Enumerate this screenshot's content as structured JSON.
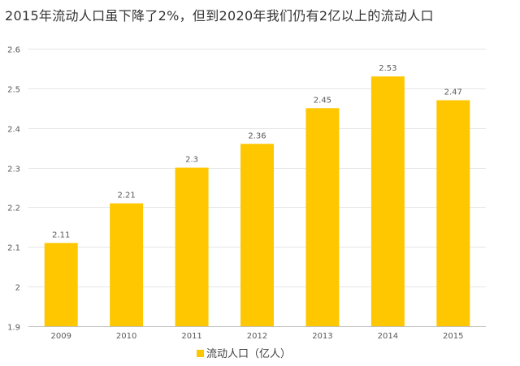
{
  "chart_data": {
    "type": "bar",
    "title": "2015年流动人口虽下降了2%，但到2020年我们仍有2亿以上的流动人口",
    "xlabel": "",
    "ylabel": "",
    "categories": [
      "2009",
      "2010",
      "2011",
      "2012",
      "2013",
      "2014",
      "2015"
    ],
    "series": [
      {
        "name": "流动人口（亿人）",
        "values": [
          2.11,
          2.21,
          2.3,
          2.36,
          2.45,
          2.53,
          2.47
        ],
        "data_labels": [
          "2.11",
          "2.21",
          "2.3",
          "2.36",
          "2.45",
          "2.53",
          "2.47"
        ],
        "color": "#FFC700"
      }
    ],
    "ylim": [
      1.9,
      2.6
    ],
    "yticks": [
      1.9,
      2,
      2.1,
      2.2,
      2.3,
      2.4,
      2.5,
      2.6
    ],
    "ytick_labels": [
      "1.9",
      "2",
      "2.1",
      "2.2",
      "2.3",
      "2.4",
      "2.5",
      "2.6"
    ],
    "grid": true,
    "legend_position": "bottom",
    "colors": {
      "grid": "#E6E6E6",
      "axis": "#BFBFBF",
      "bar": "#FFC700"
    }
  }
}
